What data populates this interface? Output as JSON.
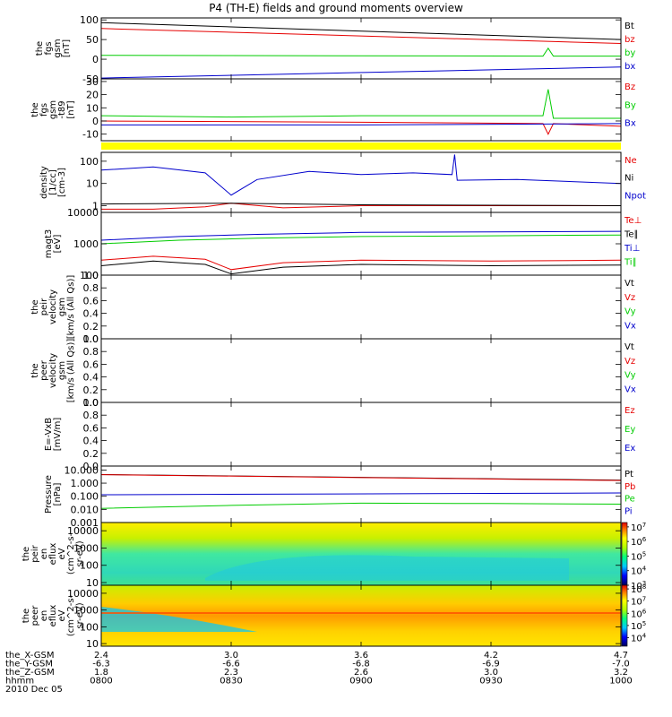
{
  "title": "P4 (TH-E) fields and ground moments overview",
  "colors": {
    "black": "#000000",
    "red": "#e60000",
    "green": "#00cc00",
    "blue": "#0000cc",
    "yellow": "#ffff00"
  },
  "chart_data": [
    {
      "type": "line",
      "ylabel": [
        "the",
        "fgs",
        "gsm",
        "[nT]"
      ],
      "ylim": [
        -50,
        105
      ],
      "yticks": [
        {
          "v": 100,
          "label": "100"
        },
        {
          "v": 50,
          "label": "50"
        },
        {
          "v": 0,
          "label": "0"
        },
        {
          "v": -50,
          "label": "-50"
        }
      ],
      "series": [
        {
          "name": "Bt",
          "color": "black",
          "points": [
            [
              8.0,
              93
            ],
            [
              10.0,
              50
            ]
          ]
        },
        {
          "name": "bz",
          "color": "red",
          "points": [
            [
              8.0,
              78
            ],
            [
              10.0,
              40
            ]
          ]
        },
        {
          "name": "by",
          "color": "green",
          "points": [
            [
              8.0,
              10
            ],
            [
              9.7,
              8
            ],
            [
              9.72,
              28
            ],
            [
              9.74,
              8
            ],
            [
              10.0,
              8
            ]
          ]
        },
        {
          "name": "bx",
          "color": "blue",
          "points": [
            [
              8.0,
              -48
            ],
            [
              10.0,
              -20
            ]
          ]
        }
      ]
    },
    {
      "type": "line",
      "ylabel": [
        "the",
        "fgs",
        "gsm",
        "-t89",
        "[nT]"
      ],
      "ylim": [
        -15,
        32
      ],
      "yticks": [
        {
          "v": 30,
          "label": "30"
        },
        {
          "v": 20,
          "label": "20"
        },
        {
          "v": 10,
          "label": "10"
        },
        {
          "v": 0,
          "label": "0"
        },
        {
          "v": -10,
          "label": "-10"
        }
      ],
      "series": [
        {
          "name": "Bz",
          "color": "red",
          "points": [
            [
              8.0,
              0
            ],
            [
              9.0,
              -1
            ],
            [
              9.7,
              -2
            ],
            [
              9.72,
              -10
            ],
            [
              9.74,
              -2
            ],
            [
              10.0,
              -4
            ]
          ]
        },
        {
          "name": "By",
          "color": "green",
          "points": [
            [
              8.0,
              4
            ],
            [
              8.5,
              3
            ],
            [
              9.0,
              4
            ],
            [
              9.7,
              4
            ],
            [
              9.72,
              24
            ],
            [
              9.74,
              2
            ],
            [
              10.0,
              2
            ]
          ]
        },
        {
          "name": "Bx",
          "color": "blue",
          "points": [
            [
              8.0,
              -3
            ],
            [
              9.0,
              -3
            ],
            [
              10.0,
              -2
            ]
          ]
        }
      ]
    },
    {
      "type": "line",
      "ylabel": [
        "density",
        "[1/cc]",
        "[cm-3]"
      ],
      "yscale": "log",
      "ylim": [
        0.5,
        250
      ],
      "yticks": [
        {
          "v": 100,
          "label": "100"
        },
        {
          "v": 10,
          "label": "10"
        },
        {
          "v": 1,
          "label": "1"
        }
      ],
      "series": [
        {
          "name": "Ne",
          "color": "red",
          "points": [
            [
              8.0,
              0.7
            ],
            [
              8.2,
              0.7
            ],
            [
              8.4,
              0.9
            ],
            [
              8.5,
              1.3
            ],
            [
              8.7,
              0.8
            ],
            [
              9.0,
              1.0
            ],
            [
              9.5,
              1.0
            ],
            [
              10.0,
              1.0
            ]
          ]
        },
        {
          "name": "Ni",
          "color": "black",
          "points": [
            [
              8.0,
              1.2
            ],
            [
              8.5,
              1.3
            ],
            [
              9.0,
              1.1
            ],
            [
              10.0,
              1.0
            ]
          ]
        },
        {
          "name": "Npot",
          "color": "blue",
          "points": [
            [
              8.0,
              40
            ],
            [
              8.2,
              55
            ],
            [
              8.4,
              30
            ],
            [
              8.5,
              3
            ],
            [
              8.6,
              15
            ],
            [
              8.8,
              35
            ],
            [
              9.0,
              25
            ],
            [
              9.2,
              30
            ],
            [
              9.35,
              25
            ],
            [
              9.36,
              200
            ],
            [
              9.37,
              14
            ],
            [
              9.6,
              15
            ],
            [
              10.0,
              10
            ]
          ]
        }
      ]
    },
    {
      "type": "line",
      "ylabel": [
        "magt3",
        "[eV]"
      ],
      "yscale": "log",
      "ylim": [
        100,
        10000
      ],
      "yticks": [
        {
          "v": 10000,
          "label": "10000"
        },
        {
          "v": 1000,
          "label": "1000"
        },
        {
          "v": 100,
          "label": "100"
        }
      ],
      "series": [
        {
          "name": "Te⊥",
          "color": "red",
          "points": [
            [
              8.0,
              300
            ],
            [
              8.2,
              400
            ],
            [
              8.4,
              320
            ],
            [
              8.5,
              150
            ],
            [
              8.7,
              250
            ],
            [
              9.0,
              300
            ],
            [
              9.5,
              280
            ],
            [
              10.0,
              300
            ]
          ]
        },
        {
          "name": "Te∥",
          "color": "black",
          "points": [
            [
              8.0,
              200
            ],
            [
              8.2,
              280
            ],
            [
              8.4,
              220
            ],
            [
              8.5,
              110
            ],
            [
              8.7,
              180
            ],
            [
              9.0,
              220
            ],
            [
              9.5,
              200
            ],
            [
              10.0,
              210
            ]
          ]
        },
        {
          "name": "Ti⊥",
          "color": "blue",
          "points": [
            [
              8.0,
              1300
            ],
            [
              8.3,
              1700
            ],
            [
              8.6,
              2000
            ],
            [
              9.0,
              2300
            ],
            [
              9.5,
              2400
            ],
            [
              10.0,
              2500
            ]
          ]
        },
        {
          "name": "Ti∥",
          "color": "green",
          "points": [
            [
              8.0,
              1000
            ],
            [
              8.3,
              1300
            ],
            [
              8.6,
              1500
            ],
            [
              9.0,
              1700
            ],
            [
              9.5,
              1800
            ],
            [
              10.0,
              1900
            ]
          ]
        }
      ]
    },
    {
      "type": "line",
      "ylabel": [
        "the",
        "peir",
        "velocity",
        "gsm",
        "[km/s (All Qs)]"
      ],
      "ylim": [
        0,
        1
      ],
      "yticks": [
        {
          "v": 1.0,
          "label": "1.0"
        },
        {
          "v": 0.8,
          "label": "0.8"
        },
        {
          "v": 0.6,
          "label": "0.6"
        },
        {
          "v": 0.4,
          "label": "0.4"
        },
        {
          "v": 0.2,
          "label": "0.2"
        },
        {
          "v": 0.0,
          "label": "0.0"
        }
      ],
      "series": [
        {
          "name": "Vt",
          "color": "black",
          "points": []
        },
        {
          "name": "Vz",
          "color": "red",
          "points": []
        },
        {
          "name": "Vy",
          "color": "green",
          "points": []
        },
        {
          "name": "Vx",
          "color": "blue",
          "points": []
        }
      ]
    },
    {
      "type": "line",
      "ylabel": [
        "the",
        "peer",
        "velocity",
        "gsm",
        "[km/s (All Qs)]"
      ],
      "ylim": [
        0,
        1
      ],
      "yticks": [
        {
          "v": 1.0,
          "label": "1.0"
        },
        {
          "v": 0.8,
          "label": "0.8"
        },
        {
          "v": 0.6,
          "label": "0.6"
        },
        {
          "v": 0.4,
          "label": "0.4"
        },
        {
          "v": 0.2,
          "label": "0.2"
        },
        {
          "v": 0.0,
          "label": "0.0"
        }
      ],
      "series": [
        {
          "name": "Vt",
          "color": "black",
          "points": []
        },
        {
          "name": "Vz",
          "color": "red",
          "points": []
        },
        {
          "name": "Vy",
          "color": "green",
          "points": []
        },
        {
          "name": "Vx",
          "color": "blue",
          "points": []
        }
      ]
    },
    {
      "type": "line",
      "ylabel": [
        "E=-VxB",
        "[mV/m]"
      ],
      "ylim": [
        0,
        1
      ],
      "yticks": [
        {
          "v": 1.0,
          "label": "1.0"
        },
        {
          "v": 0.8,
          "label": "0.8"
        },
        {
          "v": 0.6,
          "label": "0.6"
        },
        {
          "v": 0.4,
          "label": "0.4"
        },
        {
          "v": 0.2,
          "label": "0.2"
        },
        {
          "v": 0.0,
          "label": "0.0"
        }
      ],
      "series": [
        {
          "name": "Ez",
          "color": "red",
          "points": []
        },
        {
          "name": "Ey",
          "color": "green",
          "points": []
        },
        {
          "name": "Ex",
          "color": "blue",
          "points": []
        }
      ]
    },
    {
      "type": "line",
      "ylabel": [
        "Pressure",
        "[nPa]"
      ],
      "yscale": "log",
      "ylim": [
        0.001,
        20
      ],
      "yticks": [
        {
          "v": 10,
          "label": "10.000"
        },
        {
          "v": 1,
          "label": "1.000"
        },
        {
          "v": 0.1,
          "label": "0.100"
        },
        {
          "v": 0.01,
          "label": "0.010"
        },
        {
          "v": 0.001,
          "label": "0.001"
        }
      ],
      "series": [
        {
          "name": "Pt",
          "color": "black",
          "points": [
            [
              8.0,
              4.5
            ],
            [
              10.0,
              1.7
            ]
          ]
        },
        {
          "name": "Pb",
          "color": "red",
          "points": [
            [
              8.0,
              4.4
            ],
            [
              10.0,
              1.6
            ]
          ]
        },
        {
          "name": "Pe",
          "color": "green",
          "points": [
            [
              8.0,
              0.012
            ],
            [
              8.5,
              0.02
            ],
            [
              9.0,
              0.03
            ],
            [
              9.5,
              0.028
            ],
            [
              10.0,
              0.025
            ]
          ]
        },
        {
          "name": "Pi",
          "color": "blue",
          "points": [
            [
              8.0,
              0.13
            ],
            [
              10.0,
              0.18
            ]
          ]
        }
      ]
    },
    {
      "type": "heatmap",
      "ylabel": [
        "the",
        "peir",
        "en",
        "eflux",
        "eV",
        "(cm^2-s-",
        "sr-eV)"
      ],
      "yscale": "log",
      "ylim": [
        7,
        30000
      ],
      "yticks": [
        {
          "v": 10000,
          "label": "10000"
        },
        {
          "v": 1000,
          "label": "1000"
        },
        {
          "v": 100,
          "label": "100"
        },
        {
          "v": 10,
          "label": "10"
        }
      ],
      "colorbar": {
        "min_exp": 3,
        "max_exp": 7.3,
        "ticks": [
          3,
          4,
          5,
          6,
          7
        ]
      }
    },
    {
      "type": "heatmap",
      "ylabel": [
        "the",
        "peer",
        "en",
        "eflux",
        "eV",
        "(cm^2-s-",
        "sr-eV)"
      ],
      "yscale": "log",
      "ylim": [
        7,
        30000
      ],
      "yticks": [
        {
          "v": 10000,
          "label": "10000"
        },
        {
          "v": 1000,
          "label": "1000"
        },
        {
          "v": 100,
          "label": "100"
        },
        {
          "v": 10,
          "label": "10"
        }
      ],
      "colorbar": {
        "min_exp": 3.3,
        "max_exp": 8.3,
        "ticks": [
          4,
          5,
          6,
          7,
          8
        ]
      }
    }
  ],
  "xaxis": {
    "xlim": [
      8.0,
      10.0
    ],
    "rows": [
      {
        "label": "the_X-GSM",
        "values": [
          "2.4",
          "3.0",
          "3.6",
          "4.2",
          "4.7"
        ]
      },
      {
        "label": "the_Y-GSM",
        "values": [
          "-6.3",
          "-6.6",
          "-6.8",
          "-6.9",
          "-7.0"
        ]
      },
      {
        "label": "the_Z-GSM",
        "values": [
          "1.8",
          "2.3",
          "2.6",
          "3.0",
          "3.2"
        ]
      },
      {
        "label": "hhmm",
        "values": [
          "0800",
          "0830",
          "0900",
          "0930",
          "1000"
        ]
      }
    ],
    "ticks": [
      8.0,
      8.5,
      9.0,
      9.5,
      10.0
    ],
    "date": "2010 Dec 05"
  }
}
